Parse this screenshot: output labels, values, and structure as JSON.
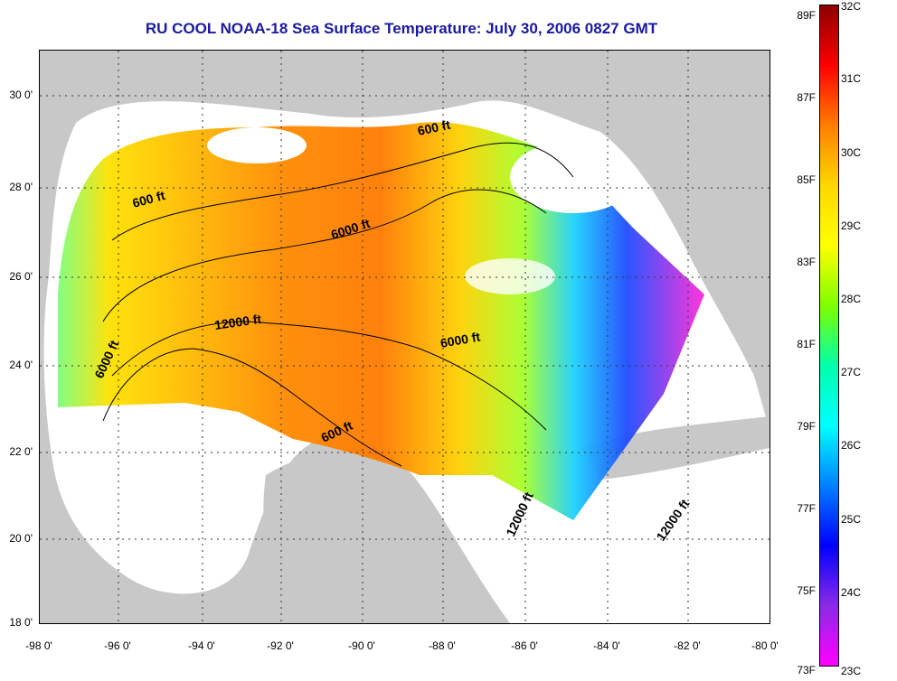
{
  "title": "RU COOL  NOAA-18  Sea Surface Temperature:  July 30, 2006 0827 GMT",
  "latitude_ticks": [
    "30 0'",
    "28 0'",
    "26 0'",
    "24 0'",
    "22 0'",
    "20 0'",
    "18 0'"
  ],
  "longitude_ticks": [
    "-98 0'",
    "-96 0'",
    "-94 0'",
    "-92 0'",
    "-90 0'",
    "-88 0'",
    "-86 0'",
    "-84 0'",
    "-82 0'",
    "-80 0'"
  ],
  "contour_labels": [
    "600 ft",
    "600 ft",
    "6000 ft",
    "12000 ft",
    "6000 ft",
    "6000 ft",
    "600 ft",
    "12000 ft",
    "12000 ft"
  ],
  "colorbar": {
    "fahrenheit_labels": [
      "89F",
      "87F",
      "85F",
      "83F",
      "81F",
      "79F",
      "77F",
      "75F",
      "73F"
    ],
    "celsius_labels": [
      "32C",
      "31C",
      "30C",
      "29C",
      "28C",
      "27C",
      "26C",
      "25C",
      "24C",
      "23C"
    ],
    "colors": [
      "#8b0000",
      "#ff0000",
      "#ff7f00",
      "#ffd700",
      "#ffff00",
      "#7fff00",
      "#00ffaa",
      "#00ffff",
      "#0080ff",
      "#0000ff",
      "#8a2be2",
      "#ff00ff"
    ]
  },
  "colors": {
    "land": "#c8c8c8",
    "cloud_mask": "#ffffff",
    "title": "#1a1aa0"
  }
}
